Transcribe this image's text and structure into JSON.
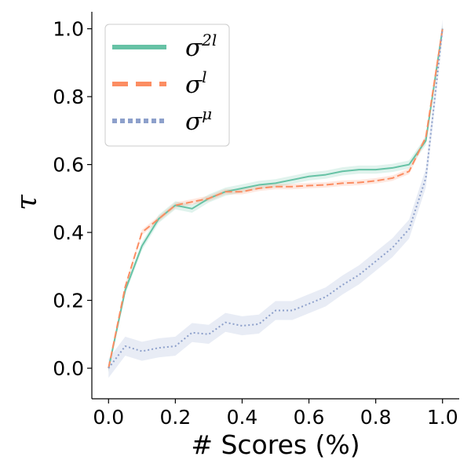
{
  "chart_data": {
    "type": "line",
    "title": "",
    "xlabel": "# Scores (%)",
    "ylabel": "τ",
    "xlim": [
      -0.05,
      1.05
    ],
    "ylim": [
      -0.09,
      1.05
    ],
    "xticks": [
      "0.0",
      "0.2",
      "0.4",
      "0.6",
      "0.8",
      "1.0"
    ],
    "yticks": [
      "0.0",
      "0.2",
      "0.4",
      "0.6",
      "0.8",
      "1.0"
    ],
    "grid": false,
    "legend_position": "top-left",
    "x": [
      0.0,
      0.05,
      0.1,
      0.15,
      0.2,
      0.25,
      0.3,
      0.35,
      0.4,
      0.45,
      0.5,
      0.55,
      0.6,
      0.65,
      0.7,
      0.75,
      0.8,
      0.85,
      0.9,
      0.95,
      1.0
    ],
    "series": [
      {
        "name": "σ^{2l}",
        "legend_base": "σ",
        "legend_sup": "2l",
        "color": "#66c2a5",
        "dash": "solid",
        "values": [
          0.0,
          0.23,
          0.36,
          0.44,
          0.48,
          0.47,
          0.5,
          0.52,
          0.53,
          0.54,
          0.545,
          0.555,
          0.565,
          0.57,
          0.58,
          0.585,
          0.585,
          0.59,
          0.6,
          0.67,
          1.0
        ],
        "band": 0.012
      },
      {
        "name": "σ^{l}",
        "legend_base": "σ",
        "legend_sup": "l",
        "color": "#fc8d62",
        "dash": "dashed",
        "values": [
          0.0,
          0.24,
          0.4,
          0.44,
          0.48,
          0.49,
          0.5,
          0.52,
          0.52,
          0.53,
          0.535,
          0.535,
          0.538,
          0.54,
          0.545,
          0.547,
          0.552,
          0.56,
          0.58,
          0.68,
          1.0
        ],
        "band": 0.008
      },
      {
        "name": "σ^{μ}",
        "legend_base": "σ",
        "legend_sup": "μ",
        "color": "#8da0cb",
        "dash": "dotted",
        "values": [
          0.0,
          0.065,
          0.05,
          0.06,
          0.065,
          0.105,
          0.1,
          0.135,
          0.125,
          0.13,
          0.17,
          0.17,
          0.19,
          0.21,
          0.245,
          0.275,
          0.315,
          0.355,
          0.41,
          0.56,
          1.0
        ],
        "band": 0.028
      }
    ]
  }
}
